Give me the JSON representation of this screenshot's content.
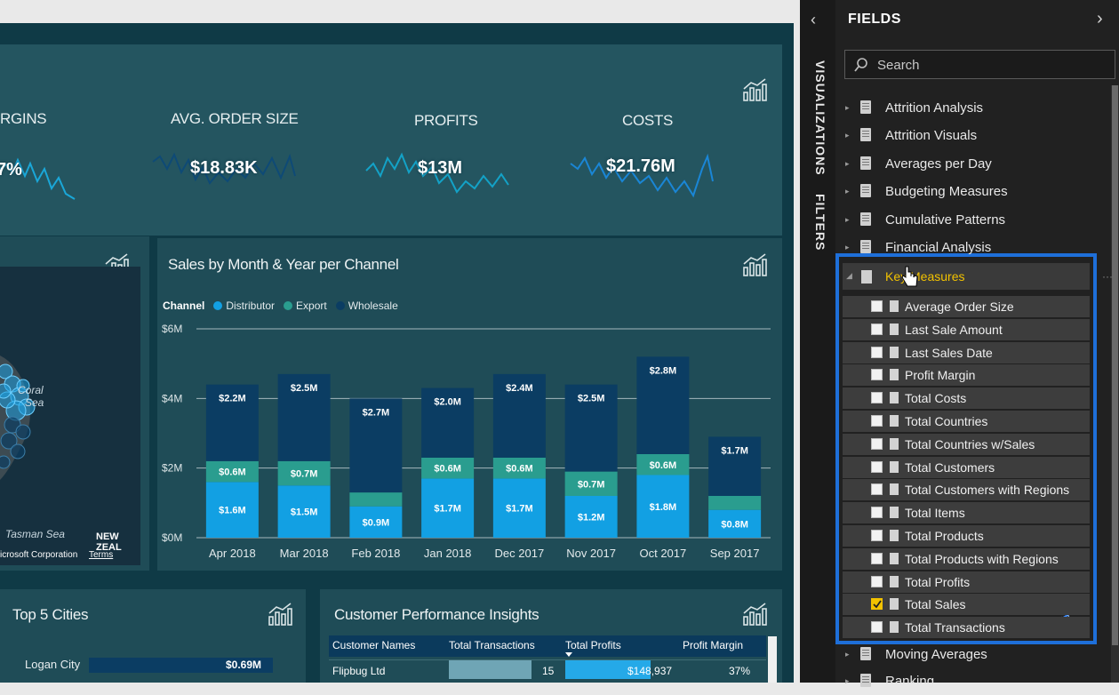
{
  "kpis": [
    {
      "title": "RGINS",
      "value": "7%"
    },
    {
      "title": "AVG. ORDER SIZE",
      "value": "$18.83K"
    },
    {
      "title": "PROFITS",
      "value": "$13M"
    },
    {
      "title": "COSTS",
      "value": "$21.76M"
    }
  ],
  "map": {
    "labels": [
      "Coral",
      "Sea",
      "Tasman Sea",
      "NEW ZEAL",
      "icrosoft Corporation",
      "Terms"
    ]
  },
  "chart_data": {
    "type": "bar",
    "stacked": true,
    "title": "Sales by Month & Year per Channel",
    "legend_title": "Channel",
    "categories": [
      "Apr 2018",
      "Mar 2018",
      "Feb 2018",
      "Jan 2018",
      "Dec 2017",
      "Nov 2017",
      "Oct 2017",
      "Sep 2017"
    ],
    "series": [
      {
        "name": "Distributor",
        "values": [
          1.6,
          1.5,
          0.9,
          1.7,
          1.7,
          1.2,
          1.8,
          0.8
        ],
        "labels": [
          "$1.6M",
          "$1.5M",
          "$0.9M",
          "$1.7M",
          "$1.7M",
          "$1.2M",
          "$1.8M",
          "$0.8M"
        ]
      },
      {
        "name": "Export",
        "values": [
          0.6,
          0.7,
          0.4,
          0.6,
          0.6,
          0.7,
          0.6,
          0.4
        ],
        "labels": [
          "$0.6M",
          "$0.7M",
          "",
          "$0.6M",
          "$0.6M",
          "$0.7M",
          "$0.6M",
          ""
        ]
      },
      {
        "name": "Wholesale",
        "values": [
          2.2,
          2.5,
          2.7,
          2.0,
          2.4,
          2.5,
          2.8,
          1.7
        ],
        "labels": [
          "$2.2M",
          "$2.5M",
          "$2.7M",
          "$2.0M",
          "$2.4M",
          "$2.5M",
          "$2.8M",
          "$1.7M"
        ]
      }
    ],
    "yticks": [
      "$0M",
      "$2M",
      "$4M",
      "$6M"
    ],
    "ylim": [
      0,
      6
    ],
    "colors": {
      "Distributor": "#12a0e3",
      "Export": "#2a9d8f",
      "Wholesale": "#0b3d63"
    }
  },
  "cities": {
    "title": "Top 5 Cities",
    "rows": [
      {
        "name": "Logan City",
        "value": "$0.69M"
      }
    ]
  },
  "insights": {
    "title": "Customer Performance Insights",
    "columns": [
      "Customer Names",
      "Total Transactions",
      "Total Profits",
      "Profit Margin"
    ],
    "rows": [
      {
        "name": "Flipbug Ltd",
        "transactions": "15",
        "profits": "$148,937",
        "margin": "37%"
      }
    ]
  },
  "rail": {
    "visualizations": "VISUALIZATIONS",
    "filters": "FILTERS"
  },
  "fields": {
    "header": "FIELDS",
    "search_placeholder": "Search",
    "tables": [
      "Attrition Analysis",
      "Attrition Visuals",
      "Averages per Day",
      "Budgeting Measures",
      "Cumulative Patterns",
      "Financial Analysis"
    ],
    "expanded_table": "Key Measures",
    "measures": [
      {
        "label": "Average Order Size",
        "checked": false
      },
      {
        "label": "Last Sale Amount",
        "checked": false
      },
      {
        "label": "Last Sales Date",
        "checked": false
      },
      {
        "label": "Profit Margin",
        "checked": false
      },
      {
        "label": "Total Costs",
        "checked": false
      },
      {
        "label": "Total Countries",
        "checked": false
      },
      {
        "label": "Total Countries w/Sales",
        "checked": false
      },
      {
        "label": "Total Customers",
        "checked": false
      },
      {
        "label": "Total Customers with Regions",
        "checked": false
      },
      {
        "label": "Total Items",
        "checked": false
      },
      {
        "label": "Total Products",
        "checked": false
      },
      {
        "label": "Total Products with Regions",
        "checked": false
      },
      {
        "label": "Total Profits",
        "checked": false
      },
      {
        "label": "Total Sales",
        "checked": true
      },
      {
        "label": "Total Transactions",
        "checked": false
      }
    ],
    "after_tables": [
      "Moving Averages",
      "Ranking"
    ]
  },
  "colors": {
    "accent": "#1e6fd9",
    "highlight_text": "#f2c200"
  }
}
